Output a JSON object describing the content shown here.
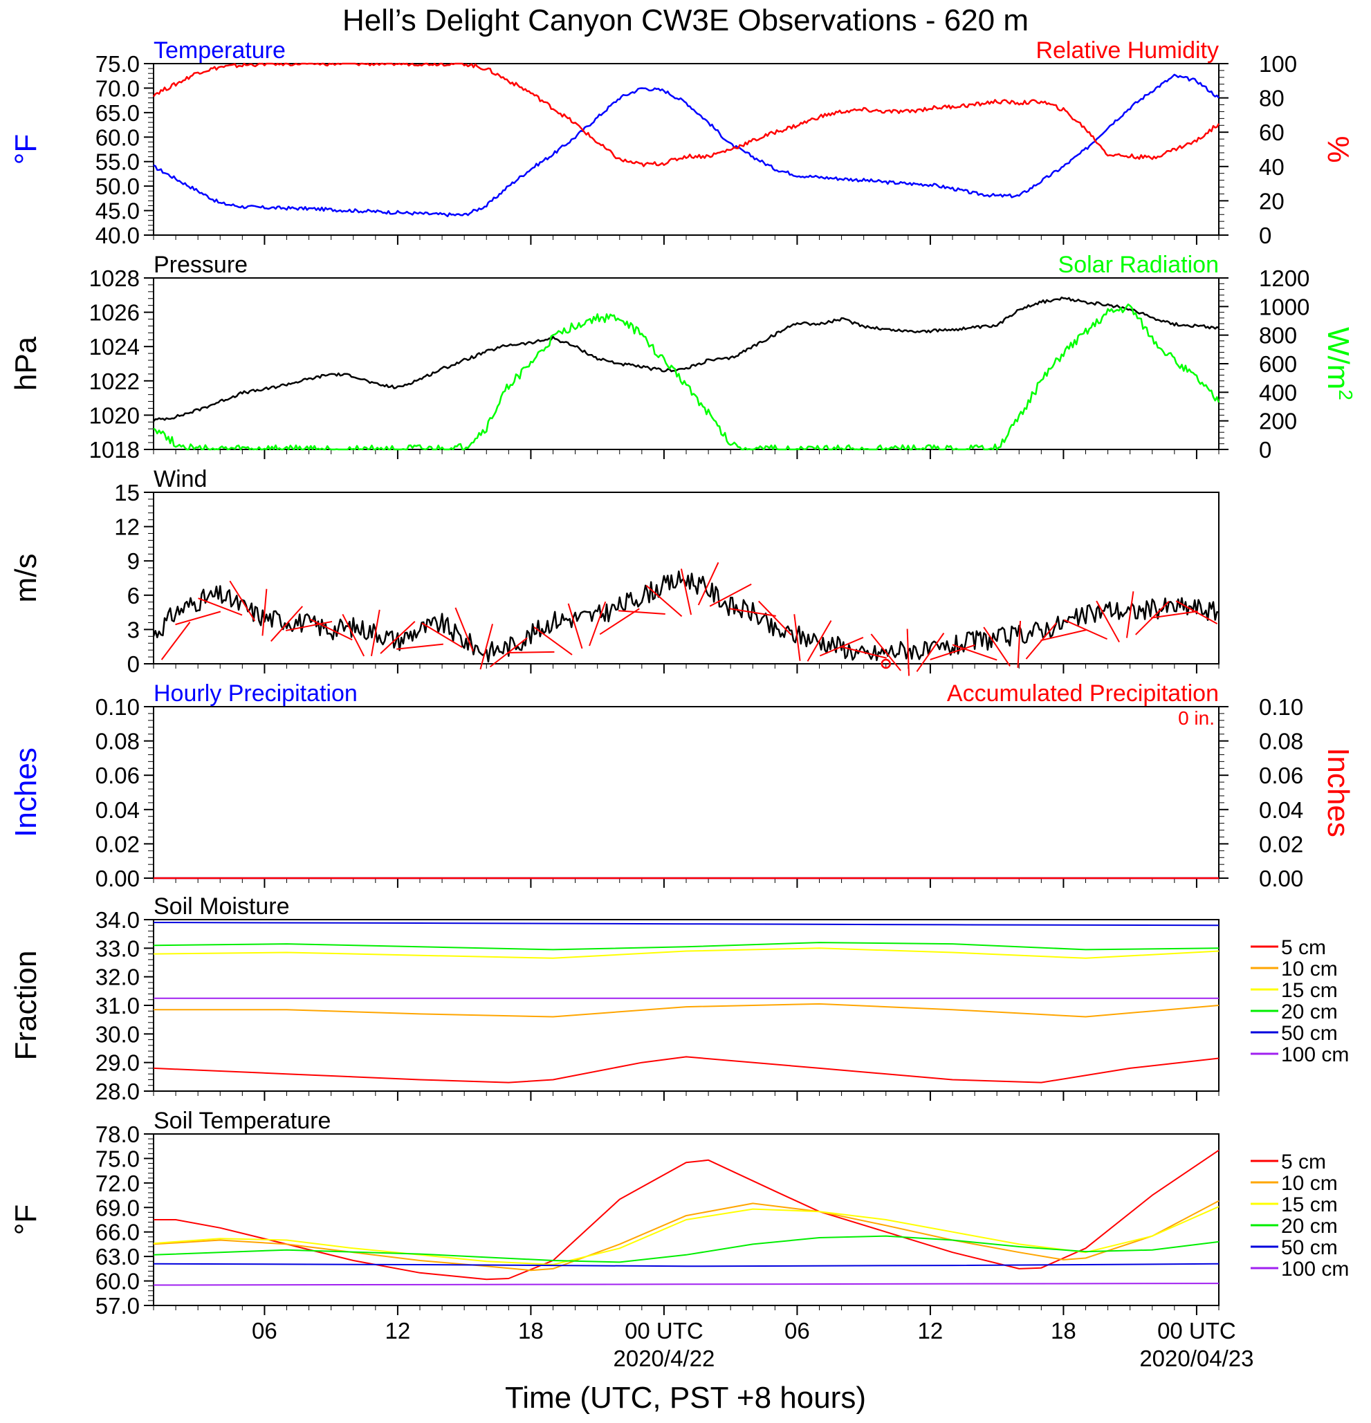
{
  "title": "Hell’s Delight Canyon CW3E Observations - 620 m",
  "colors": {
    "temperature": "#0000ff",
    "humidity": "#ff0000",
    "pressure": "#000000",
    "solar": "#00ff00",
    "wind": "#000000",
    "barbs": "#ff0000",
    "hourly": "#0000ff",
    "accum": "#ff0000",
    "d5": "#ff0000",
    "d10": "#ffa500",
    "d15": "#ffff00",
    "d20": "#00ee00",
    "d50": "#0000dd",
    "d100": "#a020f0"
  },
  "chart_data": [
    {
      "type": "line",
      "title": "Temperature",
      "title_right": "Relative Humidity",
      "ylabel": "°F",
      "ylabel_right": "%",
      "ylim": [
        40,
        75
      ],
      "ylim_right": [
        0,
        100
      ],
      "yticks": [
        "40.0",
        "45.0",
        "50.0",
        "55.0",
        "60.0",
        "65.0",
        "70.0",
        "75.0"
      ],
      "yticks_right": [
        "0",
        "20",
        "40",
        "60",
        "80",
        "100"
      ],
      "series": [
        {
          "name": "Temperature",
          "axis": "left",
          "color": "#0000ff",
          "x": [
            0,
            1,
            2,
            3,
            4,
            5,
            6,
            7,
            8,
            9,
            10,
            11,
            12,
            13,
            14,
            15,
            16,
            17,
            18,
            19,
            20,
            21,
            22,
            23,
            24,
            25,
            26,
            27,
            28,
            29,
            30,
            31,
            32,
            33,
            34,
            35,
            36,
            37,
            38,
            39,
            40,
            41,
            42,
            43,
            44,
            45,
            46,
            47,
            48
          ],
          "values": [
            54,
            51.5,
            49,
            46.5,
            45.8,
            45.6,
            45.5,
            45.4,
            45.2,
            45,
            44.8,
            44.6,
            44.4,
            44.2,
            44.1,
            46,
            50,
            53.5,
            56.5,
            60,
            64,
            68,
            70,
            69.5,
            67,
            63,
            58.5,
            56,
            53.5,
            52.2,
            51.8,
            51.5,
            51.2,
            50.8,
            50.5,
            50.3,
            49.5,
            48.5,
            48,
            48,
            51,
            54,
            57.5,
            62,
            66,
            69.5,
            72.5,
            71.5,
            68
          ]
        },
        {
          "name": "Relative Humidity",
          "axis": "right",
          "color": "#ff0000",
          "x": [
            0,
            1,
            2,
            3,
            4,
            5,
            6,
            7,
            8,
            9,
            10,
            11,
            12,
            13,
            14,
            15,
            16,
            17,
            18,
            19,
            20,
            21,
            22,
            23,
            24,
            25,
            26,
            27,
            28,
            29,
            30,
            31,
            32,
            33,
            34,
            35,
            36,
            37,
            38,
            39,
            40,
            41,
            42,
            43,
            44,
            45,
            46,
            47,
            48
          ],
          "values": [
            82,
            88,
            95,
            98,
            99,
            100,
            100,
            100,
            100,
            100,
            100,
            100,
            100,
            100,
            100,
            97,
            90,
            83,
            74,
            65,
            54,
            44,
            41,
            42,
            46,
            46,
            50,
            55,
            60,
            64,
            69,
            72,
            73,
            72,
            72,
            74,
            75,
            76,
            78,
            77,
            78,
            73,
            62,
            47,
            46,
            45,
            50,
            55,
            65
          ]
        }
      ]
    },
    {
      "type": "line",
      "title": "Pressure",
      "title_right": "Solar Radiation",
      "ylabel": "hPa",
      "ylabel_right": "W/m",
      "ylabel_right_sup": "2",
      "ylim": [
        1018,
        1028
      ],
      "ylim_right": [
        0,
        1200
      ],
      "yticks": [
        "1018",
        "1020",
        "1022",
        "1024",
        "1026",
        "1028"
      ],
      "yticks_right": [
        "0",
        "200",
        "400",
        "600",
        "800",
        "1000",
        "1200"
      ],
      "series": [
        {
          "name": "Pressure",
          "axis": "left",
          "color": "#000000",
          "x": [
            0,
            1,
            2,
            3,
            4,
            5,
            6,
            7,
            8,
            9,
            10,
            11,
            12,
            13,
            14,
            15,
            16,
            17,
            18,
            19,
            20,
            21,
            22,
            23,
            24,
            25,
            26,
            27,
            28,
            29,
            30,
            31,
            32,
            33,
            34,
            35,
            36,
            37,
            38,
            39,
            40,
            41,
            42,
            43,
            44,
            45,
            46,
            47,
            48
          ],
          "values": [
            1019.7,
            1019.9,
            1020.3,
            1020.8,
            1021.3,
            1021.5,
            1021.8,
            1022.1,
            1022.4,
            1022.3,
            1021.8,
            1021.6,
            1022.1,
            1022.7,
            1023.2,
            1023.7,
            1024.1,
            1024.2,
            1024.5,
            1024,
            1023.3,
            1023,
            1022.8,
            1022.6,
            1022.7,
            1023.2,
            1023.3,
            1024,
            1024.7,
            1025.4,
            1025.3,
            1025.6,
            1025.2,
            1025,
            1024.9,
            1024.9,
            1025,
            1025.1,
            1025.2,
            1026.2,
            1026.6,
            1026.8,
            1026.6,
            1026.4,
            1026.2,
            1025.7,
            1025.3,
            1025.2,
            1025.1
          ]
        },
        {
          "name": "Solar Radiation",
          "axis": "right",
          "color": "#00ff00",
          "x": [
            0,
            1,
            2,
            3,
            4,
            5,
            6,
            7,
            8,
            9,
            10,
            11,
            12,
            13,
            14,
            15,
            16,
            17,
            18,
            19,
            20,
            21,
            22,
            23,
            24,
            25,
            26,
            27,
            28,
            29,
            30,
            31,
            32,
            33,
            34,
            35,
            36,
            37,
            38,
            39,
            40,
            41,
            42,
            43,
            44,
            45,
            46,
            47,
            48
          ],
          "values": [
            160,
            40,
            0,
            0,
            0,
            0,
            0,
            0,
            0,
            0,
            0,
            0,
            0,
            0,
            10,
            150,
            450,
            600,
            780,
            870,
            920,
            920,
            800,
            620,
            460,
            250,
            40,
            0,
            0,
            0,
            0,
            0,
            0,
            0,
            0,
            0,
            0,
            0,
            10,
            220,
            480,
            680,
            820,
            960,
            1000,
            780,
            620,
            500,
            330
          ]
        }
      ]
    },
    {
      "type": "line",
      "title": "Wind",
      "ylabel": "m/s",
      "ylim": [
        0,
        15
      ],
      "yticks": [
        "0",
        "3",
        "6",
        "9",
        "12",
        "15"
      ],
      "series": [
        {
          "name": "Wind",
          "axis": "left",
          "color": "#000000",
          "x": [
            0,
            1,
            2,
            3,
            4,
            5,
            6,
            7,
            8,
            9,
            10,
            11,
            12,
            13,
            14,
            15,
            16,
            17,
            18,
            19,
            20,
            21,
            22,
            23,
            24,
            25,
            26,
            27,
            28,
            29,
            30,
            31,
            32,
            33,
            34,
            35,
            36,
            37,
            38,
            39,
            40,
            41,
            42,
            43,
            44,
            45,
            46,
            47,
            48
          ],
          "values": [
            2.5,
            4.5,
            5.5,
            6,
            5,
            4,
            3.8,
            3.5,
            3,
            3.2,
            2.8,
            2,
            3,
            3.5,
            2,
            1,
            1.5,
            2.5,
            3.8,
            4,
            4.2,
            5,
            6,
            6.8,
            7.5,
            6.5,
            5,
            4.5,
            2.8,
            2.5,
            2,
            1.5,
            0.7,
            1,
            1.3,
            1,
            1.5,
            2,
            2.2,
            2.5,
            3,
            3.5,
            4.2,
            4.8,
            4.5,
            4.8,
            5,
            4.9,
            4.5
          ]
        }
      ],
      "marker_label": "o",
      "marker_x": 33
    },
    {
      "type": "line",
      "title": "Hourly Precipitation",
      "title_right": "Accumulated Precipitation",
      "accum_note": "0 in.",
      "ylabel": "Inches",
      "ylabel_right": "Inches",
      "ylim": [
        0,
        0.1
      ],
      "ylim_right": [
        0,
        0.1
      ],
      "yticks": [
        "0.00",
        "0.02",
        "0.04",
        "0.06",
        "0.08",
        "0.10"
      ],
      "yticks_right": [
        "0.00",
        "0.02",
        "0.04",
        "0.06",
        "0.08",
        "0.10"
      ],
      "series": [
        {
          "name": "Hourly Precipitation",
          "axis": "left",
          "color": "#0000ff",
          "x": [
            0,
            48
          ],
          "values": [
            0,
            0
          ]
        },
        {
          "name": "Accumulated Precipitation",
          "axis": "right",
          "color": "#ff0000",
          "x": [
            0,
            48
          ],
          "values": [
            0,
            0
          ]
        }
      ]
    },
    {
      "type": "line",
      "title": "Soil Moisture",
      "ylabel": "Fraction",
      "ylim": [
        28,
        34
      ],
      "yticks": [
        "28.0",
        "29.0",
        "30.0",
        "31.0",
        "32.0",
        "33.0",
        "34.0"
      ],
      "series": [
        {
          "name": "5 cm",
          "color": "#ff0000",
          "x": [
            0,
            6,
            12,
            16,
            18,
            22,
            24,
            30,
            36,
            40,
            44,
            48
          ],
          "values": [
            28.8,
            28.6,
            28.4,
            28.3,
            28.4,
            29.0,
            29.2,
            28.8,
            28.4,
            28.3,
            28.8,
            29.15
          ]
        },
        {
          "name": "10 cm",
          "color": "#ffa500",
          "x": [
            0,
            6,
            12,
            18,
            24,
            30,
            36,
            42,
            48
          ],
          "values": [
            30.85,
            30.85,
            30.7,
            30.6,
            30.95,
            31.05,
            30.85,
            30.6,
            31.0
          ]
        },
        {
          "name": "15 cm",
          "color": "#ffff00",
          "x": [
            0,
            6,
            12,
            18,
            24,
            30,
            36,
            42,
            48
          ],
          "values": [
            32.8,
            32.85,
            32.75,
            32.65,
            32.9,
            33.0,
            32.85,
            32.65,
            32.9
          ]
        },
        {
          "name": "20 cm",
          "color": "#00ee00",
          "x": [
            0,
            6,
            12,
            18,
            24,
            30,
            36,
            42,
            48
          ],
          "values": [
            33.1,
            33.15,
            33.05,
            32.95,
            33.05,
            33.2,
            33.15,
            32.95,
            33.0
          ]
        },
        {
          "name": "50 cm",
          "color": "#0000dd",
          "x": [
            0,
            12,
            24,
            36,
            48
          ],
          "values": [
            33.9,
            33.88,
            33.85,
            33.82,
            33.8
          ]
        },
        {
          "name": "100 cm",
          "color": "#a020f0",
          "x": [
            0,
            24,
            48
          ],
          "values": [
            31.25,
            31.25,
            31.25
          ]
        }
      ]
    },
    {
      "type": "line",
      "title": "Soil Temperature",
      "ylabel": "°F",
      "ylim": [
        57,
        78
      ],
      "yticks": [
        "57.0",
        "60.0",
        "63.0",
        "66.0",
        "69.0",
        "72.0",
        "75.0",
        "78.0"
      ],
      "series": [
        {
          "name": "5 cm",
          "color": "#ff0000",
          "x": [
            0,
            1,
            3,
            6,
            9,
            12,
            15,
            16,
            18,
            21,
            24,
            25,
            28,
            30,
            33,
            36,
            39,
            40,
            42,
            45,
            48
          ],
          "values": [
            67.5,
            67.5,
            66.5,
            64.5,
            62.5,
            61,
            60.2,
            60.3,
            62.5,
            70,
            74.5,
            74.8,
            71,
            68.5,
            66,
            63.5,
            61.5,
            61.6,
            64,
            70.5,
            76
          ]
        },
        {
          "name": "10 cm",
          "color": "#ffa500",
          "x": [
            0,
            3,
            6,
            9,
            12,
            15,
            17,
            18,
            21,
            24,
            27,
            30,
            33,
            36,
            39,
            41,
            42,
            45,
            48
          ],
          "values": [
            64.5,
            65,
            64.5,
            63.5,
            62.5,
            61.8,
            61.3,
            61.5,
            64.5,
            68,
            69.5,
            68.5,
            66.8,
            65,
            63.5,
            62.6,
            62.8,
            65.5,
            69.8
          ]
        },
        {
          "name": "15 cm",
          "color": "#ffff00",
          "x": [
            0,
            3,
            6,
            9,
            12,
            15,
            18,
            21,
            24,
            27,
            30,
            33,
            36,
            39,
            42,
            45,
            48
          ],
          "values": [
            64.6,
            65.2,
            65,
            64,
            63.2,
            62.4,
            62,
            64,
            67.5,
            68.8,
            68.5,
            67.5,
            66,
            64.5,
            63.5,
            65.5,
            69.1
          ]
        },
        {
          "name": "20 cm",
          "color": "#00ee00",
          "x": [
            0,
            6,
            12,
            18,
            21,
            24,
            27,
            30,
            33,
            36,
            39,
            42,
            45,
            48
          ],
          "values": [
            63.2,
            63.8,
            63.3,
            62.5,
            62.3,
            63.2,
            64.5,
            65.3,
            65.5,
            65,
            64.2,
            63.6,
            63.8,
            64.8
          ]
        },
        {
          "name": "50 cm",
          "color": "#0000dd",
          "x": [
            0,
            12,
            24,
            36,
            48
          ],
          "values": [
            62.1,
            62.0,
            61.8,
            61.9,
            62.1
          ]
        },
        {
          "name": "100 cm",
          "color": "#a020f0",
          "x": [
            0,
            24,
            48
          ],
          "values": [
            59.5,
            59.6,
            59.7
          ]
        }
      ]
    }
  ],
  "legend": [
    "5 cm",
    "10 cm",
    "15 cm",
    "20 cm",
    "50 cm",
    "100 cm"
  ],
  "xaxis": {
    "ticks": [
      {
        "x": 5,
        "label": "06"
      },
      {
        "x": 11,
        "label": "12"
      },
      {
        "x": 17,
        "label": "18"
      },
      {
        "x": 23,
        "label": "00 UTC"
      },
      {
        "x": 29,
        "label": "06"
      },
      {
        "x": 35,
        "label": "12"
      },
      {
        "x": 41,
        "label": "18"
      },
      {
        "x": 47,
        "label": "00 UTC"
      }
    ],
    "date_labels": [
      {
        "x": 23,
        "label": "2020/4/22"
      },
      {
        "x": 47,
        "label": "2020/04/23"
      }
    ],
    "xlabel": "Time (UTC, PST +8 hours)",
    "range": [
      0,
      48
    ]
  }
}
